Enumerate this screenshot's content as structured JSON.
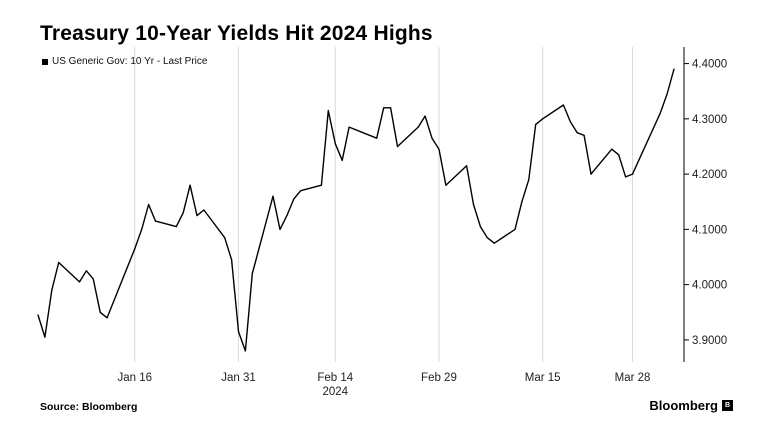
{
  "title": "Treasury 10-Year Yields Hit 2024 Highs",
  "source": "Source: Bloomberg",
  "brand": "Bloomberg",
  "chart_data": {
    "type": "line",
    "legend": "US Generic Gov: 10 Yr - Last Price",
    "legend_position": "top-left",
    "grid": "vertical only",
    "y_axis_side": "right",
    "ylim": [
      3.86,
      4.43
    ],
    "y_ticks": [
      {
        "value": 3.9,
        "label": "3.9000"
      },
      {
        "value": 4.0,
        "label": "4.0000"
      },
      {
        "value": 4.1,
        "label": "4.1000"
      },
      {
        "value": 4.2,
        "label": "4.2000"
      },
      {
        "value": 4.3,
        "label": "4.3000"
      },
      {
        "value": 4.4,
        "label": "4.4000"
      }
    ],
    "x_ticks": [
      {
        "date": "2024-01-16",
        "label": "Jan 16"
      },
      {
        "date": "2024-01-31",
        "label": "Jan 31"
      },
      {
        "date": "2024-02-14",
        "label": "Feb 14"
      },
      {
        "date": "2024-02-29",
        "label": "Feb 29"
      },
      {
        "date": "2024-03-15",
        "label": "Mar 15"
      },
      {
        "date": "2024-03-28",
        "label": "Mar 28"
      }
    ],
    "x_year_label": "2024",
    "series": [
      {
        "name": "US Generic Gov: 10 Yr - Last Price",
        "points": [
          [
            "2024-01-02",
            3.945
          ],
          [
            "2024-01-03",
            3.905
          ],
          [
            "2024-01-04",
            3.99
          ],
          [
            "2024-01-05",
            4.04
          ],
          [
            "2024-01-08",
            4.005
          ],
          [
            "2024-01-09",
            4.025
          ],
          [
            "2024-01-10",
            4.01
          ],
          [
            "2024-01-11",
            3.95
          ],
          [
            "2024-01-12",
            3.94
          ],
          [
            "2024-01-16",
            4.065
          ],
          [
            "2024-01-17",
            4.1
          ],
          [
            "2024-01-18",
            4.145
          ],
          [
            "2024-01-19",
            4.115
          ],
          [
            "2024-01-22",
            4.105
          ],
          [
            "2024-01-23",
            4.13
          ],
          [
            "2024-01-24",
            4.18
          ],
          [
            "2024-01-25",
            4.125
          ],
          [
            "2024-01-26",
            4.135
          ],
          [
            "2024-01-29",
            4.085
          ],
          [
            "2024-01-30",
            4.045
          ],
          [
            "2024-01-31",
            3.915
          ],
          [
            "2024-02-01",
            3.88
          ],
          [
            "2024-02-02",
            4.02
          ],
          [
            "2024-02-05",
            4.16
          ],
          [
            "2024-02-06",
            4.1
          ],
          [
            "2024-02-07",
            4.125
          ],
          [
            "2024-02-08",
            4.155
          ],
          [
            "2024-02-09",
            4.17
          ],
          [
            "2024-02-12",
            4.18
          ],
          [
            "2024-02-13",
            4.315
          ],
          [
            "2024-02-14",
            4.255
          ],
          [
            "2024-02-15",
            4.225
          ],
          [
            "2024-02-16",
            4.285
          ],
          [
            "2024-02-20",
            4.265
          ],
          [
            "2024-02-21",
            4.32
          ],
          [
            "2024-02-22",
            4.32
          ],
          [
            "2024-02-23",
            4.25
          ],
          [
            "2024-02-26",
            4.285
          ],
          [
            "2024-02-27",
            4.305
          ],
          [
            "2024-02-28",
            4.265
          ],
          [
            "2024-02-29",
            4.245
          ],
          [
            "2024-03-01",
            4.18
          ],
          [
            "2024-03-04",
            4.215
          ],
          [
            "2024-03-05",
            4.145
          ],
          [
            "2024-03-06",
            4.105
          ],
          [
            "2024-03-07",
            4.085
          ],
          [
            "2024-03-08",
            4.075
          ],
          [
            "2024-03-11",
            4.1
          ],
          [
            "2024-03-12",
            4.15
          ],
          [
            "2024-03-13",
            4.19
          ],
          [
            "2024-03-14",
            4.29
          ],
          [
            "2024-03-15",
            4.3
          ],
          [
            "2024-03-18",
            4.325
          ],
          [
            "2024-03-19",
            4.295
          ],
          [
            "2024-03-20",
            4.275
          ],
          [
            "2024-03-21",
            4.27
          ],
          [
            "2024-03-22",
            4.2
          ],
          [
            "2024-03-25",
            4.245
          ],
          [
            "2024-03-26",
            4.235
          ],
          [
            "2024-03-27",
            4.195
          ],
          [
            "2024-03-28",
            4.2
          ],
          [
            "2024-04-01",
            4.31
          ],
          [
            "2024-04-02",
            4.345
          ],
          [
            "2024-04-03",
            4.39
          ]
        ]
      }
    ],
    "colors": {
      "line": "#000000",
      "grid": "#d9d9d9",
      "axis": "#000000"
    }
  }
}
